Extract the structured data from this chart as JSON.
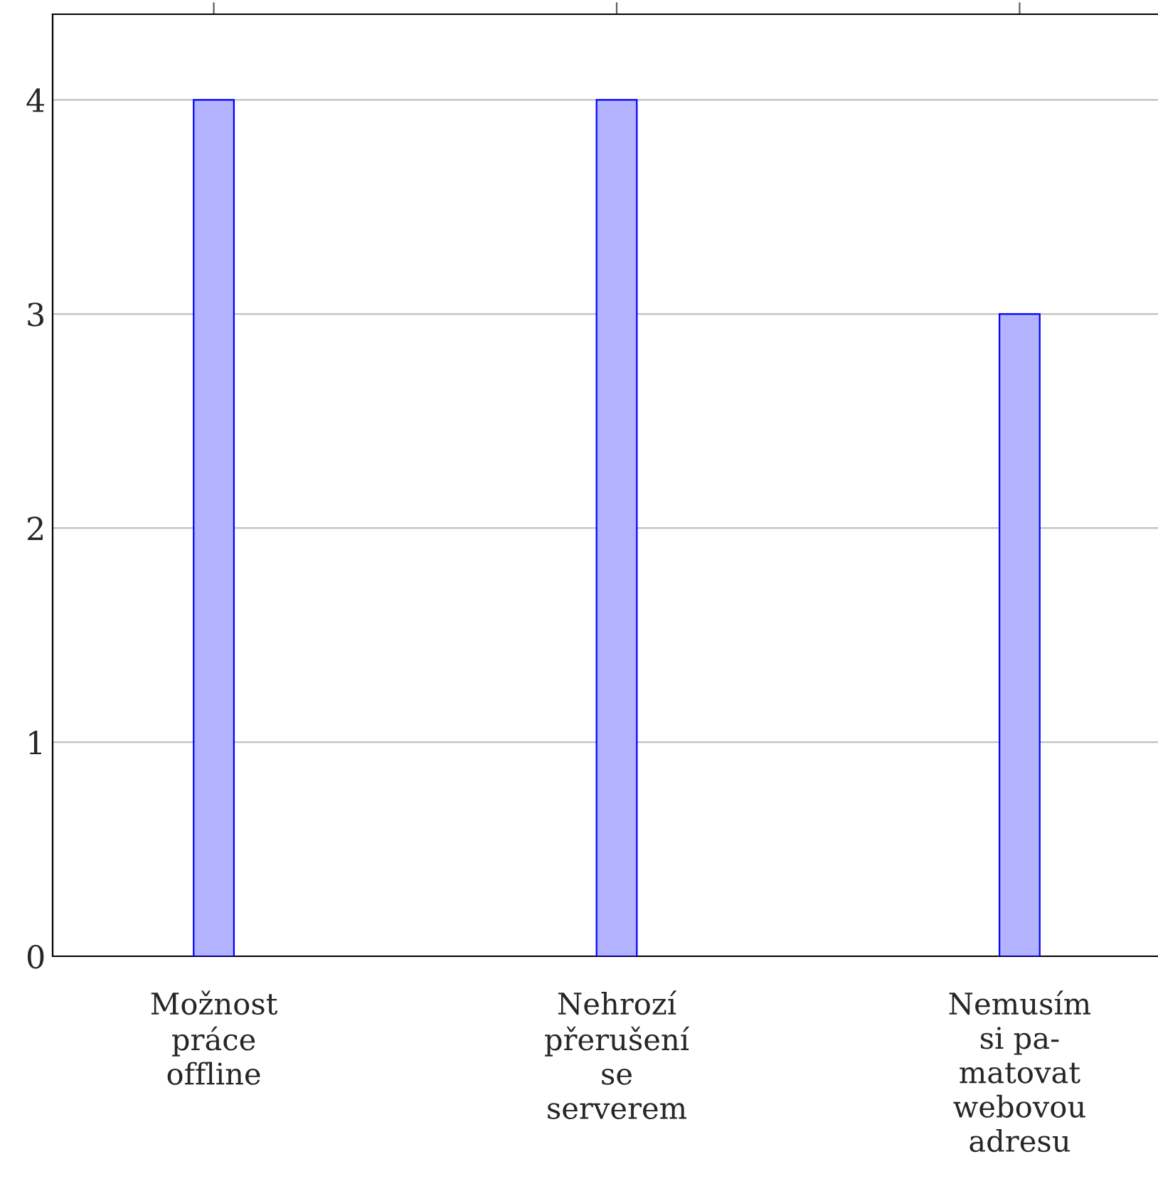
{
  "chart_data": {
    "type": "bar",
    "categories": [
      "Možnost\npráce\noffline",
      "Nehrozí\npřerušení\nse\nserverem",
      "Nemusím\nsi pa-\nmatovat\nwebovou\nadresu"
    ],
    "series": [
      {
        "color": "#b3b3ff",
        "values": [
          4,
          4,
          3
        ]
      }
    ],
    "ylim": [
      0,
      4.4
    ],
    "yticks": [
      0,
      1,
      2,
      3,
      4
    ],
    "grid": "y"
  }
}
